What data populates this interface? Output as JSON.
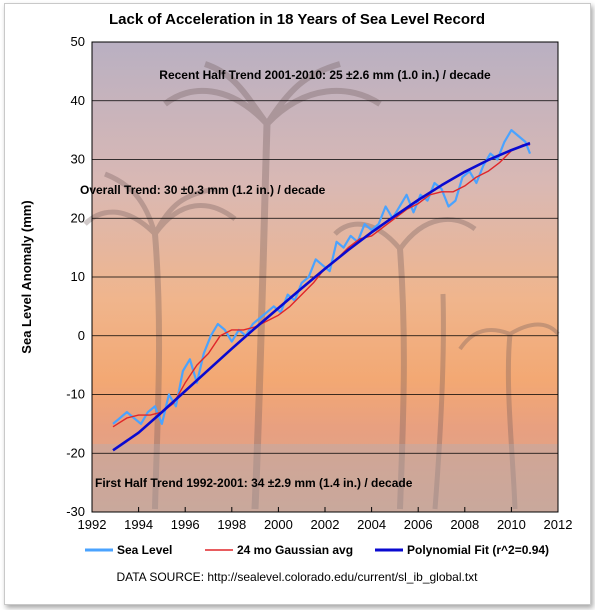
{
  "chart_data": {
    "type": "line",
    "title": "Lack of Acceleration in 18 Years of Sea Level Record",
    "ylabel": "Sea Level Anomaly (mm)",
    "xlabel": "",
    "xlim": [
      1992,
      2012
    ],
    "ylim": [
      -30,
      50
    ],
    "x_ticks": [
      "1992",
      "1994",
      "1996",
      "1998",
      "2000",
      "2002",
      "2004",
      "2006",
      "2008",
      "2010",
      "2012"
    ],
    "y_ticks": [
      "-30",
      "-20",
      "-10",
      "0",
      "10",
      "20",
      "30",
      "40",
      "50"
    ],
    "grid": "horizontal",
    "annotations": {
      "recent": "Recent Half Trend 2001-2010:  25 ±2.6 mm (1.0 in.) / decade",
      "overall": "Overall Trend:  30 ±0.3 mm (1.2 in.) / decade",
      "first": "First Half Trend 1992-2001:  34 ±2.9 mm (1.4 in.) / decade"
    },
    "legend_position": "bottom",
    "source": "DATA SOURCE: http://sealevel.colorado.edu/current/sl_ib_global.txt",
    "colors": {
      "sea_level": "#4aa3ff",
      "gaussian": "#e0262a",
      "polynomial": "#0a0ad0"
    },
    "series": [
      {
        "name": "Sea Level",
        "x": [
          1992.9,
          1993.2,
          1993.5,
          1993.8,
          1994.1,
          1994.4,
          1994.7,
          1995.0,
          1995.3,
          1995.6,
          1995.9,
          1996.2,
          1996.5,
          1996.8,
          1997.1,
          1997.4,
          1997.7,
          1998.0,
          1998.3,
          1998.6,
          1998.9,
          1999.2,
          1999.5,
          1999.8,
          2000.1,
          2000.4,
          2000.7,
          2001.0,
          2001.3,
          2001.6,
          2001.9,
          2002.2,
          2002.5,
          2002.8,
          2003.1,
          2003.4,
          2003.7,
          2004.0,
          2004.3,
          2004.6,
          2004.9,
          2005.2,
          2005.5,
          2005.8,
          2006.1,
          2006.4,
          2006.7,
          2007.0,
          2007.3,
          2007.6,
          2007.9,
          2008.2,
          2008.5,
          2008.8,
          2009.1,
          2009.4,
          2009.7,
          2010.0,
          2010.3,
          2010.6,
          2010.8
        ],
        "y": [
          -15,
          -14,
          -13,
          -14,
          -15,
          -13,
          -12,
          -15,
          -10,
          -12,
          -6,
          -4,
          -8,
          -3,
          0,
          2,
          1,
          -1,
          1,
          0,
          2,
          3,
          4,
          5,
          4,
          7,
          6,
          9,
          10,
          13,
          12,
          11,
          16,
          15,
          17,
          16,
          19,
          18,
          19,
          22,
          20,
          22,
          24,
          21,
          24,
          23,
          26,
          25,
          22,
          23,
          27,
          28,
          26,
          29,
          31,
          30,
          33,
          35,
          34,
          33,
          31
        ]
      },
      {
        "name": "24 mo Gaussian avg",
        "x": [
          1992.9,
          1993.5,
          1994.0,
          1994.5,
          1995.0,
          1995.5,
          1996.0,
          1996.5,
          1997.0,
          1997.5,
          1998.0,
          1998.5,
          1999.0,
          1999.5,
          2000.0,
          2000.5,
          2001.0,
          2001.5,
          2002.0,
          2002.5,
          2003.0,
          2003.5,
          2004.0,
          2004.5,
          2005.0,
          2005.5,
          2006.0,
          2006.5,
          2007.0,
          2007.5,
          2008.0,
          2008.5,
          2009.0,
          2009.5,
          2010.0,
          2010.5,
          2010.8
        ],
        "y": [
          -15.5,
          -14,
          -13.5,
          -13.5,
          -13,
          -11.5,
          -8,
          -5,
          -3,
          0,
          1,
          1,
          1.5,
          2.5,
          3.5,
          5,
          7,
          9,
          11.5,
          13,
          15,
          16.5,
          17,
          18.5,
          20,
          21.5,
          22.5,
          24,
          24.5,
          24.5,
          25.5,
          27,
          28,
          29.5,
          31.5,
          32.5,
          32.5
        ]
      },
      {
        "name": "Polynomial Fit (r^2=0.94)",
        "x": [
          1992.9,
          1994,
          1995,
          1996,
          1997,
          1998,
          1999,
          2000,
          2001,
          2002,
          2003,
          2004,
          2005,
          2006,
          2007,
          2008,
          2009,
          2010,
          2010.8
        ],
        "y": [
          -19.5,
          -16.5,
          -13,
          -9.4,
          -5.8,
          -2.2,
          1.3,
          4.7,
          8.1,
          11.4,
          14.6,
          17.6,
          20.4,
          23.1,
          25.6,
          27.9,
          29.9,
          31.6,
          32.8
        ]
      }
    ]
  }
}
